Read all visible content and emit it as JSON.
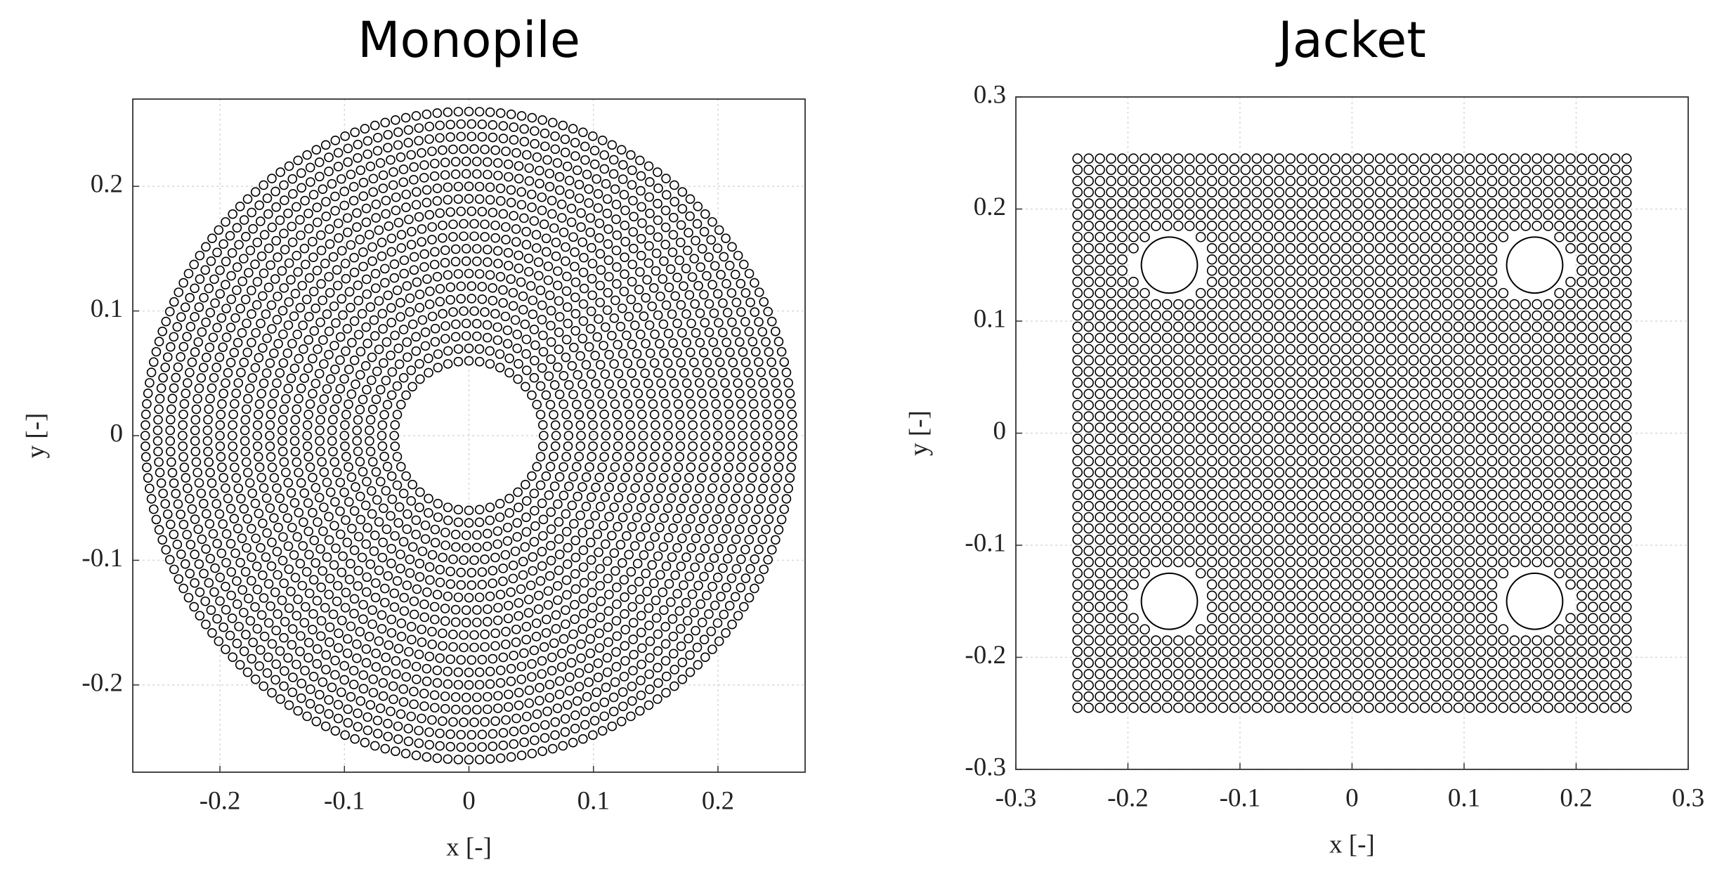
{
  "chart_data": [
    {
      "type": "scatter",
      "title": "Monopile",
      "xlabel": "x [-]",
      "ylabel": "y [-]",
      "xlim": [
        -0.27,
        0.27
      ],
      "ylim": [
        -0.27,
        0.27
      ],
      "xticks": [
        -0.2,
        -0.1,
        0,
        0.1,
        0.2
      ],
      "yticks": [
        -0.2,
        -0.1,
        0,
        0.1,
        0.2
      ],
      "grid": true,
      "color": "#000000",
      "rings": [
        {
          "r": 0.06,
          "n": 44
        },
        {
          "r": 0.07,
          "n": 52
        },
        {
          "r": 0.08,
          "n": 59
        },
        {
          "r": 0.09,
          "n": 67
        },
        {
          "r": 0.1,
          "n": 74
        },
        {
          "r": 0.11,
          "n": 81
        },
        {
          "r": 0.12,
          "n": 89
        },
        {
          "r": 0.13,
          "n": 96
        },
        {
          "r": 0.14,
          "n": 103
        },
        {
          "r": 0.15,
          "n": 111
        },
        {
          "r": 0.16,
          "n": 118
        },
        {
          "r": 0.17,
          "n": 126
        },
        {
          "r": 0.18,
          "n": 133
        },
        {
          "r": 0.19,
          "n": 140
        },
        {
          "r": 0.2,
          "n": 148
        },
        {
          "r": 0.21,
          "n": 155
        },
        {
          "r": 0.22,
          "n": 163
        },
        {
          "r": 0.23,
          "n": 170
        },
        {
          "r": 0.24,
          "n": 177
        },
        {
          "r": 0.25,
          "n": 185
        },
        {
          "r": 0.26,
          "n": 192
        }
      ]
    },
    {
      "type": "scatter",
      "title": "Jacket",
      "xlabel": "x [-]",
      "ylabel": "y [-]",
      "xlim": [
        -0.3,
        0.3
      ],
      "ylim": [
        -0.3,
        0.3
      ],
      "xticks": [
        -0.3,
        -0.2,
        -0.1,
        0,
        0.1,
        0.2,
        0.3
      ],
      "yticks": [
        -0.3,
        -0.2,
        -0.1,
        0,
        0.1,
        0.2,
        0.3
      ],
      "grid": true,
      "color": "#000000",
      "x": [
        -0.245,
        -0.235,
        -0.225,
        -0.215,
        -0.205,
        -0.195,
        -0.185,
        -0.175,
        -0.165,
        -0.155,
        -0.145,
        -0.135,
        -0.125,
        -0.115,
        -0.105,
        -0.095,
        -0.085,
        -0.075,
        -0.065,
        -0.055,
        -0.045,
        -0.035,
        -0.025,
        -0.015,
        -0.005,
        0.005,
        0.015,
        0.025,
        0.035,
        0.045,
        0.055,
        0.065,
        0.075,
        0.085,
        0.095,
        0.105,
        0.115,
        0.125,
        0.135,
        0.145,
        0.155,
        0.165,
        0.175,
        0.185,
        0.195,
        0.205,
        0.215,
        0.225,
        0.235,
        0.245
      ],
      "y": [
        -0.245,
        -0.235,
        -0.225,
        -0.215,
        -0.205,
        -0.195,
        -0.185,
        -0.175,
        -0.165,
        -0.155,
        -0.145,
        -0.135,
        -0.125,
        -0.115,
        -0.105,
        -0.095,
        -0.085,
        -0.075,
        -0.065,
        -0.055,
        -0.045,
        -0.035,
        -0.025,
        -0.015,
        -0.005,
        0.005,
        0.015,
        0.025,
        0.035,
        0.045,
        0.055,
        0.065,
        0.075,
        0.085,
        0.095,
        0.105,
        0.115,
        0.125,
        0.135,
        0.145,
        0.155,
        0.165,
        0.175,
        0.185,
        0.195,
        0.205,
        0.215,
        0.225,
        0.235,
        0.245
      ],
      "holes": [
        {
          "x": -0.163,
          "y": 0.15,
          "r": 0.025
        },
        {
          "x": 0.163,
          "y": 0.15,
          "r": 0.025
        },
        {
          "x": -0.163,
          "y": -0.15,
          "r": 0.025
        },
        {
          "x": 0.163,
          "y": -0.15,
          "r": 0.025
        }
      ]
    }
  ]
}
